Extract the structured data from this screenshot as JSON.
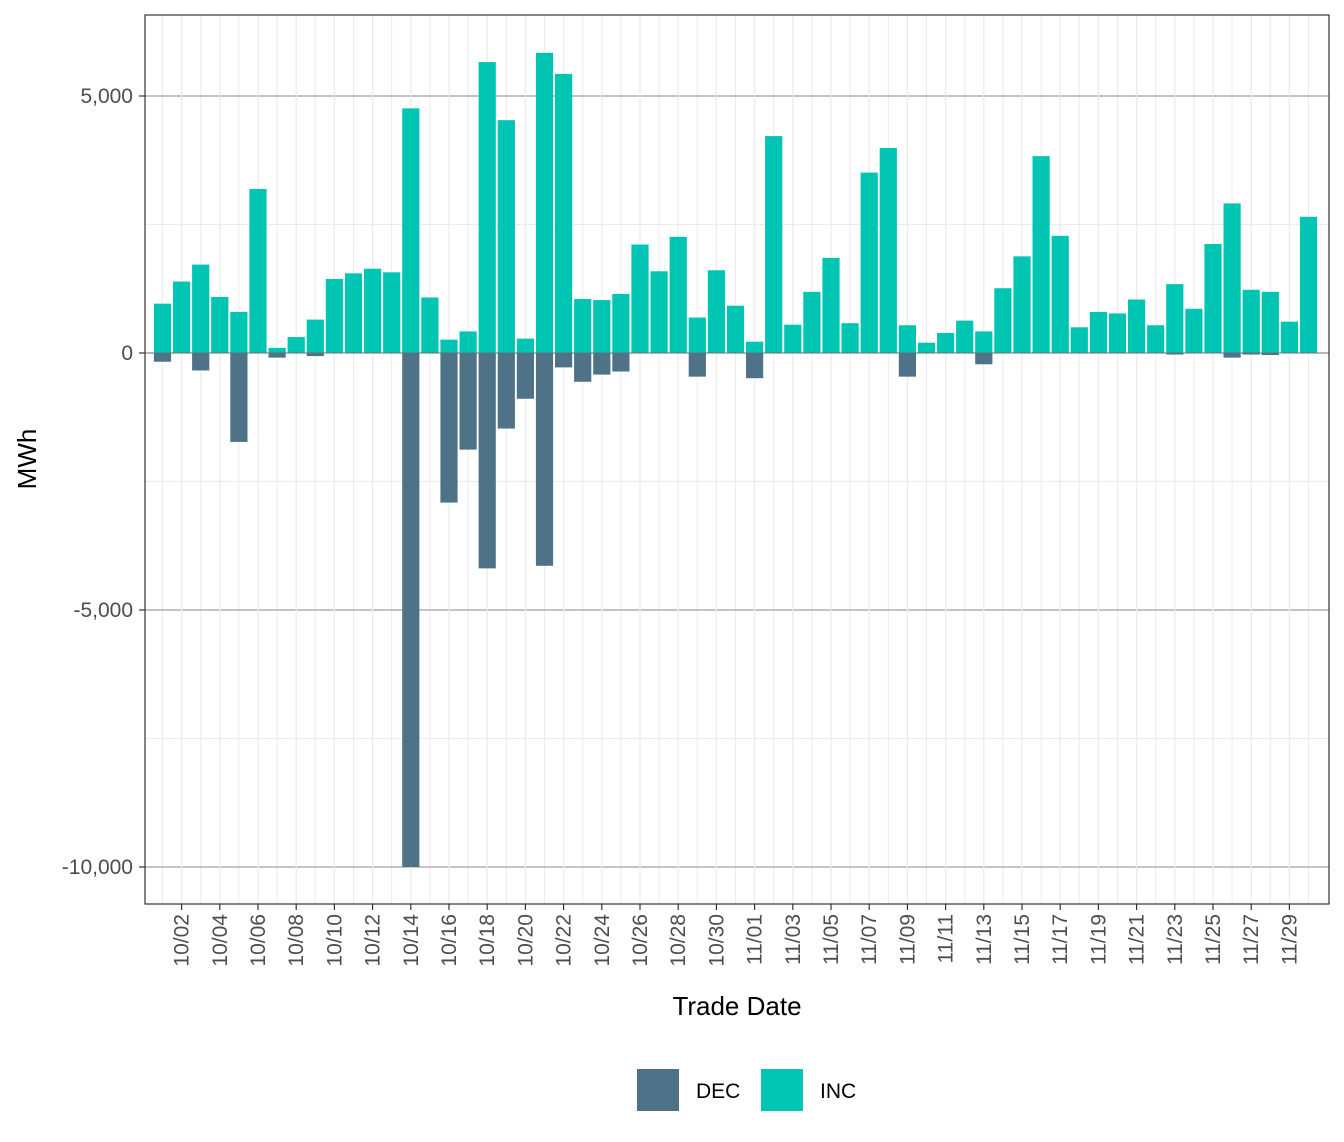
{
  "chart_data": {
    "type": "bar",
    "stacked": true,
    "xlabel": "Trade Date",
    "ylabel": "MWh",
    "ylim": [
      -10700,
      6600
    ],
    "y_ticks": [
      5000,
      0,
      -5000,
      -10000
    ],
    "y_tick_labels": [
      "5,000",
      "0",
      "-5,000",
      "-10,000"
    ],
    "grid": true,
    "legend_position": "bottom",
    "x_tick_labels": [
      "10/02",
      "10/04",
      "10/06",
      "10/08",
      "10/10",
      "10/12",
      "10/14",
      "10/16",
      "10/18",
      "10/20",
      "10/22",
      "10/24",
      "10/26",
      "10/28",
      "10/30",
      "11/01",
      "11/03",
      "11/05",
      "11/07",
      "11/09",
      "11/11",
      "11/13",
      "11/15",
      "11/17",
      "11/19",
      "11/21",
      "11/23",
      "11/25",
      "11/27",
      "11/29"
    ],
    "categories": [
      "10/01",
      "10/02",
      "10/03",
      "10/04",
      "10/05",
      "10/06",
      "10/07",
      "10/08",
      "10/09",
      "10/10",
      "10/11",
      "10/12",
      "10/13",
      "10/14",
      "10/15",
      "10/16",
      "10/17",
      "10/18",
      "10/19",
      "10/20",
      "10/21",
      "10/22",
      "10/23",
      "10/24",
      "10/25",
      "10/26",
      "10/27",
      "10/28",
      "10/29",
      "10/30",
      "10/31",
      "11/01",
      "11/02",
      "11/03",
      "11/04",
      "11/05",
      "11/06",
      "11/07",
      "11/08",
      "11/09",
      "11/10",
      "11/11",
      "11/12",
      "11/13",
      "11/14",
      "11/15",
      "11/16",
      "11/17",
      "11/18",
      "11/19",
      "11/20",
      "11/21",
      "11/22",
      "11/23",
      "11/24",
      "11/25",
      "11/26",
      "11/27",
      "11/28",
      "11/29",
      "11/30"
    ],
    "series": [
      {
        "name": "DEC",
        "color": "#4e7388",
        "values": [
          -170,
          0,
          -340,
          0,
          -1730,
          0,
          -90,
          0,
          -60,
          0,
          0,
          0,
          0,
          -10000,
          0,
          -2910,
          -1880,
          -4190,
          -1470,
          -890,
          -4140,
          -280,
          -560,
          -420,
          -360,
          0,
          0,
          0,
          -460,
          0,
          0,
          -490,
          0,
          0,
          0,
          0,
          0,
          0,
          0,
          -460,
          0,
          0,
          0,
          -220,
          0,
          0,
          0,
          0,
          0,
          0,
          0,
          0,
          0,
          -30,
          0,
          0,
          -90,
          -30,
          -40,
          0,
          0
        ]
      },
      {
        "name": "INC",
        "color": "#00c5b2",
        "values": [
          960,
          1390,
          1720,
          1090,
          800,
          3190,
          100,
          310,
          650,
          1440,
          1550,
          1640,
          1570,
          4760,
          1080,
          260,
          420,
          5660,
          4530,
          280,
          5840,
          5430,
          1050,
          1030,
          1150,
          2110,
          1590,
          2260,
          690,
          1610,
          920,
          220,
          4220,
          550,
          1190,
          1850,
          580,
          3510,
          3990,
          540,
          200,
          390,
          630,
          420,
          1260,
          1880,
          3830,
          2280,
          500,
          800,
          770,
          1040,
          540,
          1340,
          860,
          2120,
          2910,
          1230,
          1190,
          610,
          2650
        ]
      }
    ]
  }
}
